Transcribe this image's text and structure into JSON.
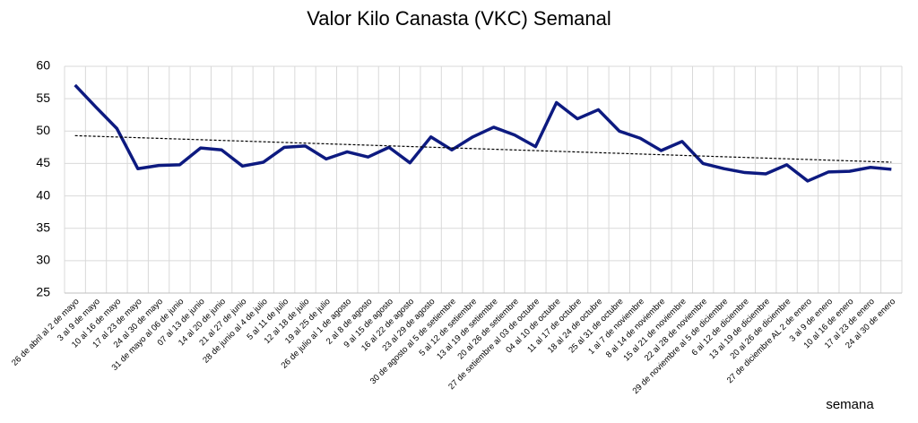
{
  "chart_data": {
    "type": "line",
    "title": "Valor Kilo Canasta (VKC) Semanal",
    "x_label": "semana",
    "categories": [
      "26 de abril al 2 de mayo",
      "3 al 9 de mayo",
      "10 al 16 de mayo",
      "17 al 23 de mayo",
      "24 al 30 de mayo",
      "31 de mayo al 06 de junio",
      "07 al 13 de junio",
      "14 al 20 de junio",
      "21 al 27 de junio",
      "28 de junio al 4 de julio",
      "5 al 11 de julio",
      "12 al 18 de julio",
      "19 al 25 de julio",
      "26 de julio al 1 de agosto",
      "2 al 8 de agosto",
      "9 al 15 de agosto",
      "16 al 22 de agosto",
      "23 al 29 de agosto",
      "30 de agosto al 5 de setiembre",
      "5 al 12 de setiembre",
      "13 al 19 de setiembre",
      "20 al 26 de setiembre",
      "27 de setiembre al 03 de octubre",
      "04 al 10 de octubre",
      "11 al 17 de octubre",
      "18 al 24 de octubre",
      "25 al 31 de octubre",
      "1 al 7 de noviembre",
      "8 al 14 de noviembre",
      "15 al 21 de noviembre",
      "22 al 28 de noviembre",
      "29 de noviembre al 5 de diciembre",
      "6 al 12 de diciembre",
      "13 al 19 de diciembre",
      "20 al 26 de diciembre",
      "27 de diciembre AL 2 de enero",
      "3 al 9 de enero",
      "10 al 16 de enero",
      "17 al 23 de enero",
      "24 al 30 de enero"
    ],
    "series": [
      {
        "color": "#0d1a80",
        "values": [
          57.1,
          53.7,
          50.4,
          44.2,
          44.7,
          44.8,
          47.4,
          47.1,
          44.6,
          45.2,
          47.5,
          47.7,
          45.7,
          46.8,
          46.0,
          47.5,
          45.1,
          49.1,
          47.1,
          49.1,
          50.6,
          49.4,
          47.6,
          54.4,
          51.9,
          53.3,
          50.0,
          48.9,
          47.0,
          48.4,
          45.0,
          44.2,
          43.6,
          43.4,
          44.8,
          42.3,
          43.7,
          43.8,
          44.4,
          44.1
        ]
      }
    ],
    "trendline": {
      "values": [
        49.3,
        45.2
      ],
      "color": "#000000"
    },
    "ylim": [
      25,
      60
    ],
    "yticks": [
      25,
      30,
      35,
      40,
      45,
      50,
      55,
      60
    ],
    "grid": true
  }
}
